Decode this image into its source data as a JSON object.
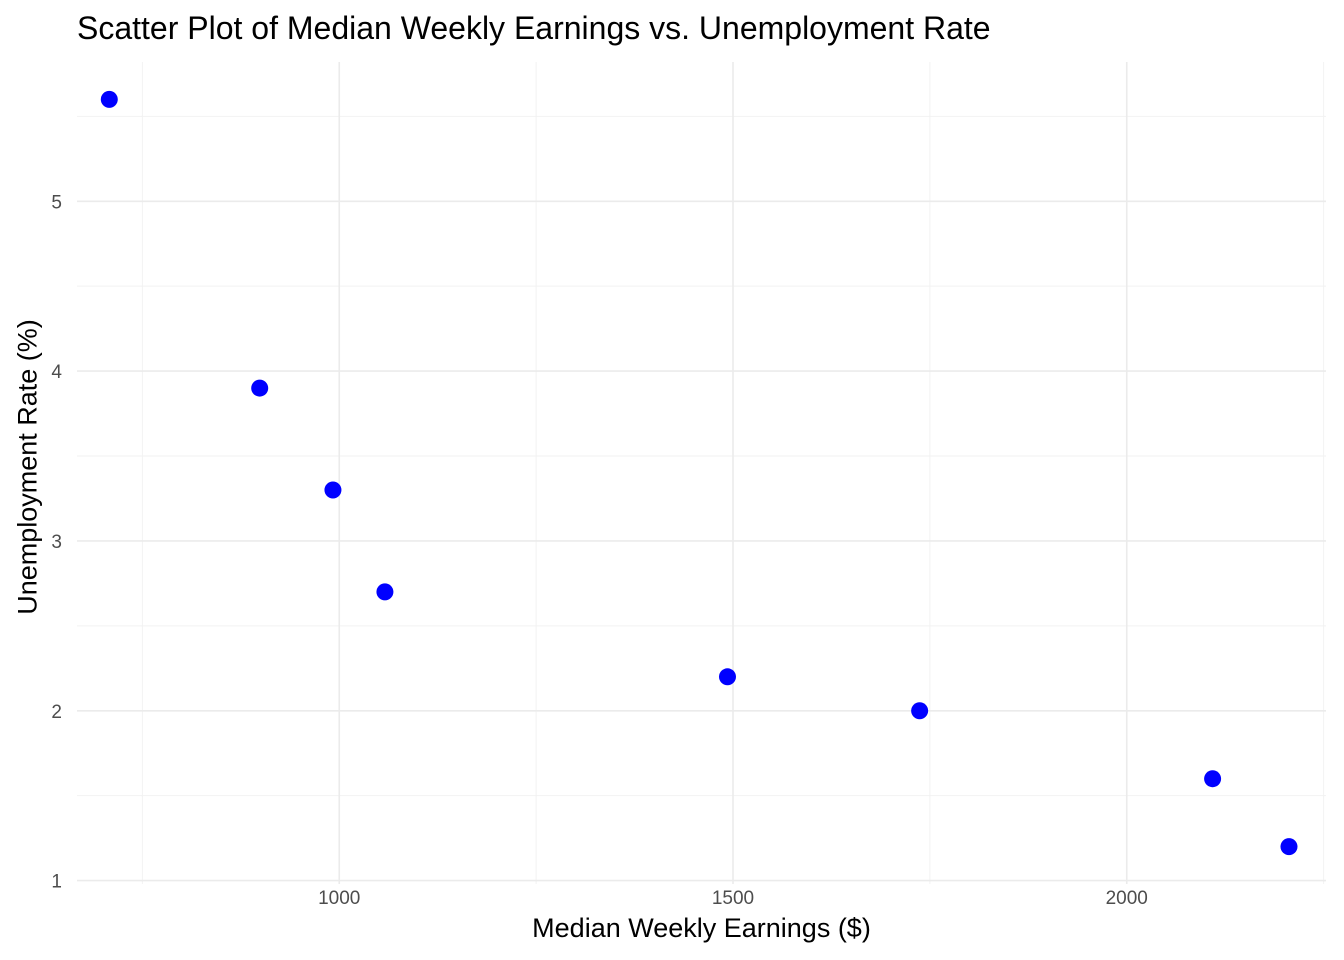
{
  "chart_data": {
    "type": "scatter",
    "title": "Scatter Plot of Median Weekly Earnings vs. Unemployment Rate",
    "xlabel": "Median Weekly Earnings ($)",
    "ylabel": "Unemployment Rate (%)",
    "xlim": [
      667,
      2253
    ],
    "ylim": [
      0.98,
      5.82
    ],
    "x_ticks": [
      1000,
      1500,
      2000
    ],
    "y_ticks": [
      1,
      2,
      3,
      4,
      5
    ],
    "x_tick_labels": [
      "1000",
      "1500",
      "2000"
    ],
    "y_tick_labels": [
      "1",
      "2",
      "3",
      "4",
      "5"
    ],
    "grid": true,
    "legend": "none",
    "point_color": "#0000FF",
    "points": [
      {
        "x": 708,
        "y": 5.6
      },
      {
        "x": 899,
        "y": 3.9
      },
      {
        "x": 992,
        "y": 3.3
      },
      {
        "x": 1058,
        "y": 2.7
      },
      {
        "x": 1493,
        "y": 2.2
      },
      {
        "x": 1737,
        "y": 2.0
      },
      {
        "x": 2109,
        "y": 1.6
      },
      {
        "x": 2206,
        "y": 1.2
      }
    ]
  }
}
